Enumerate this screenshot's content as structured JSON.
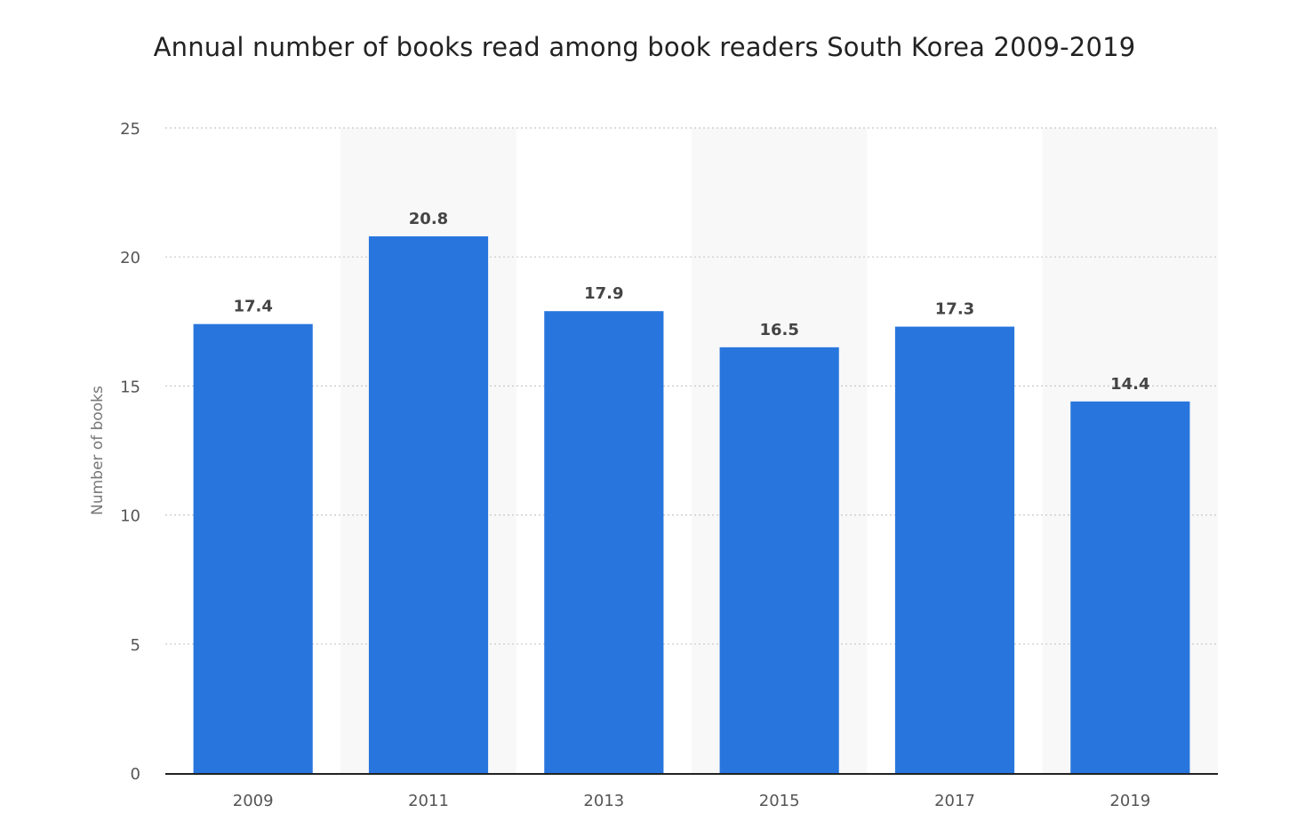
{
  "chart_data": {
    "type": "bar",
    "title": "Annual number of books read among book readers South Korea 2009-2019",
    "xlabel": "",
    "ylabel": "Number of books",
    "categories": [
      "2009",
      "2011",
      "2013",
      "2015",
      "2017",
      "2019"
    ],
    "series": [
      {
        "values": [
          17.4,
          20.8,
          17.9,
          16.5,
          17.3,
          14.4
        ]
      }
    ],
    "value_labels": [
      "17.4",
      "20.8",
      "17.9",
      "16.5",
      "17.3",
      "14.4"
    ],
    "ylim": [
      0,
      25
    ],
    "yticks": [
      0,
      5,
      10,
      15,
      20,
      25
    ],
    "grid": true,
    "legend": "none",
    "bar_color": "#2876dd",
    "alternate_band_color": "#f8f8f9"
  }
}
